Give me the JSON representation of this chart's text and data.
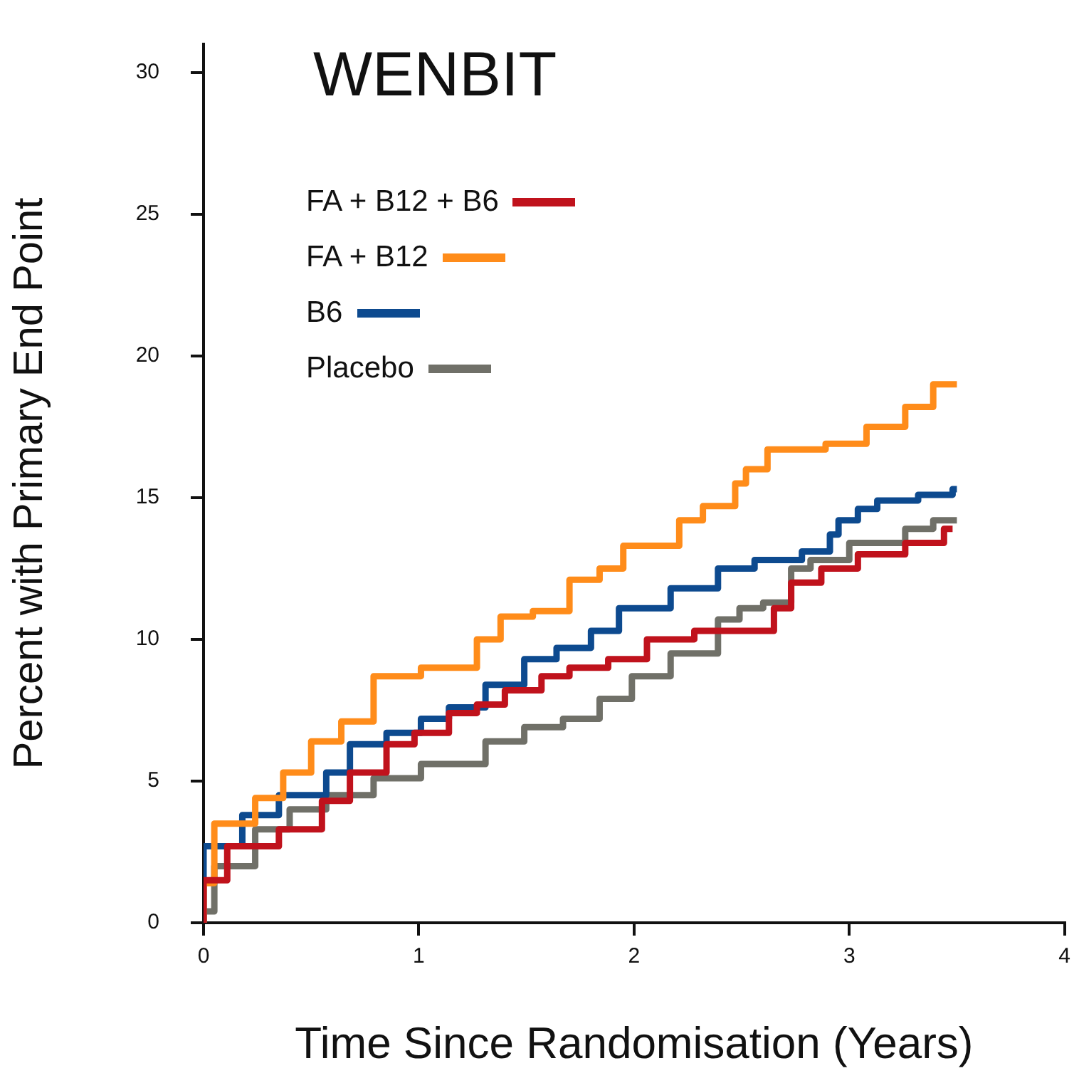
{
  "chart_data": {
    "type": "step",
    "title": "WENBIT",
    "xlabel": "Time Since Randomisation (Years)",
    "ylabel": "Percent with Primary End Point",
    "xlim": [
      0,
      4
    ],
    "xticks": [
      0,
      1,
      2,
      3,
      4
    ],
    "ylim": [
      0,
      31
    ],
    "yticks": [
      0,
      5,
      10,
      15,
      20,
      25,
      30
    ],
    "grid": false,
    "legend": "top left",
    "marker": "none",
    "line_style": "solid",
    "series": [
      {
        "name": "FA + B12 + B6",
        "color": "#c0121c",
        "x": [
          0,
          0.11,
          0.35,
          0.55,
          0.68,
          0.85,
          0.98,
          1.14,
          1.27,
          1.4,
          1.57,
          1.7,
          1.88,
          2.06,
          2.28,
          2.65,
          2.73,
          2.87,
          3.04,
          3.26,
          3.44,
          3.48
        ],
        "values": [
          0,
          1.5,
          2.7,
          3.3,
          4.3,
          5.3,
          6.3,
          6.7,
          7.4,
          7.7,
          8.2,
          8.7,
          9.0,
          9.3,
          10.0,
          10.3,
          11.1,
          12.0,
          12.5,
          13.0,
          13.4,
          13.9
        ]
      },
      {
        "name": "FA + B12",
        "color": "#ff8c1a",
        "x": [
          0,
          0.05,
          0.24,
          0.37,
          0.5,
          0.64,
          0.79,
          1.01,
          1.27,
          1.38,
          1.53,
          1.7,
          1.84,
          1.95,
          2.21,
          2.32,
          2.47,
          2.52,
          2.62,
          2.89,
          3.08,
          3.26,
          3.39,
          3.5
        ],
        "values": [
          0,
          1.4,
          3.5,
          4.4,
          5.3,
          6.4,
          7.1,
          8.7,
          9.0,
          10.0,
          10.8,
          11.0,
          12.1,
          12.5,
          13.3,
          14.2,
          14.7,
          15.5,
          16.0,
          16.7,
          16.9,
          17.5,
          18.2,
          19.0
        ]
      },
      {
        "name": "B6",
        "color": "#0d4a8f",
        "x": [
          0,
          0.18,
          0.35,
          0.57,
          0.68,
          0.85,
          1.01,
          1.14,
          1.31,
          1.49,
          1.64,
          1.8,
          1.93,
          2.17,
          2.39,
          2.56,
          2.78,
          2.91,
          2.95,
          3.04,
          3.13,
          3.32,
          3.48,
          3.5
        ],
        "values": [
          0,
          2.7,
          3.8,
          4.5,
          5.3,
          6.3,
          6.7,
          7.2,
          7.6,
          8.4,
          9.3,
          9.7,
          10.3,
          11.1,
          11.8,
          12.5,
          12.8,
          13.1,
          13.7,
          14.2,
          14.6,
          14.9,
          15.1,
          15.3
        ]
      },
      {
        "name": "Placebo",
        "color": "#707068",
        "x": [
          0,
          0.05,
          0.24,
          0.4,
          0.57,
          0.79,
          1.01,
          1.08,
          1.31,
          1.49,
          1.67,
          1.84,
          1.99,
          2.17,
          2.39,
          2.49,
          2.6,
          2.73,
          2.82,
          3.0,
          3.26,
          3.39,
          3.5
        ],
        "values": [
          0,
          0.4,
          2.0,
          3.3,
          4.0,
          4.5,
          5.1,
          5.6,
          5.6,
          6.4,
          6.9,
          7.2,
          7.9,
          8.7,
          9.5,
          10.7,
          11.1,
          11.3,
          12.5,
          12.8,
          13.4,
          13.9,
          14.2
        ]
      }
    ]
  }
}
